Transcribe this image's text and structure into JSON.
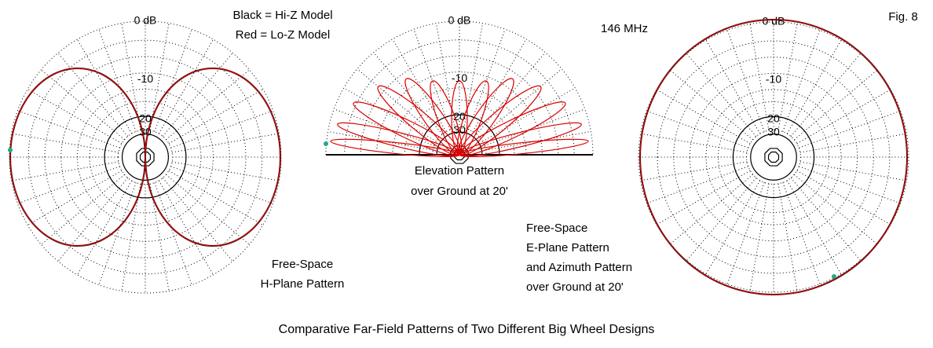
{
  "legend": {
    "black": "Black = Hi-Z Model",
    "red": "Red = Lo-Z Model"
  },
  "frequency": "146 MHz",
  "figure": "Fig. 8",
  "plots": [
    {
      "ring_labels": [
        "0 dB",
        "-10",
        "20",
        "30"
      ],
      "caption": [
        "Free-Space",
        "H-Plane Pattern"
      ]
    },
    {
      "ring_labels": [
        "0 dB",
        "-10",
        "20",
        "30"
      ],
      "caption": [
        "Elevation Pattern",
        "over Ground at 20'"
      ]
    },
    {
      "ring_labels": [
        "0 dB",
        "-10",
        "20",
        "30"
      ],
      "caption": [
        "Free-Space",
        "E-Plane Pattern",
        "and Azimuth Pattern",
        "over Ground at 20'"
      ]
    }
  ],
  "footer": "Comparative Far-Field Patterns of Two Different Big Wheel Designs"
}
